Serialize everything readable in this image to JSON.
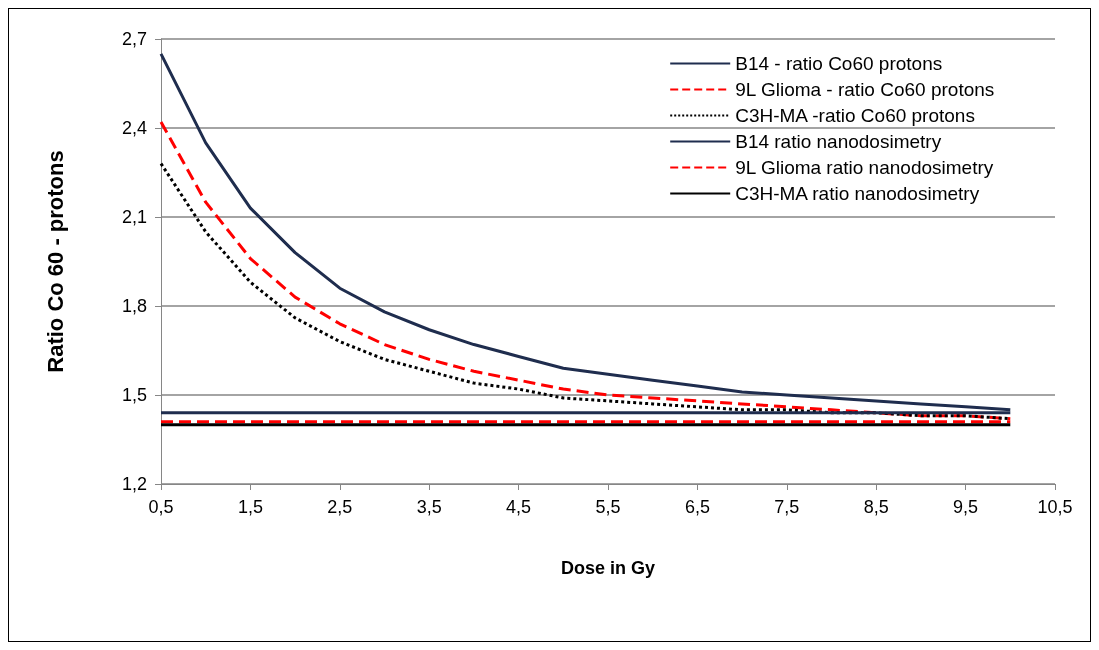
{
  "chart_data": {
    "type": "line",
    "xlabel": "Dose in Gy",
    "ylabel": "Ratio Co 60 - protons",
    "x": [
      0.5,
      1,
      1.5,
      2,
      2.5,
      3,
      3.5,
      4,
      4.5,
      5,
      5.5,
      6,
      6.5,
      7,
      7.5,
      8,
      8.5,
      9,
      9.5,
      10
    ],
    "series": [
      {
        "name": "B14 - ratio Co60 protons",
        "color": "#1f2d4e",
        "line_style": "solid",
        "values": [
          2.65,
          2.35,
          2.13,
          1.98,
          1.86,
          1.78,
          1.72,
          1.67,
          1.63,
          1.59,
          1.57,
          1.55,
          1.53,
          1.51,
          1.5,
          1.49,
          1.48,
          1.47,
          1.46,
          1.45
        ]
      },
      {
        "name": "9L Glioma - ratio Co60 protons",
        "color": "#ff0000",
        "line_style": "dashed",
        "values": [
          2.42,
          2.15,
          1.96,
          1.83,
          1.74,
          1.67,
          1.62,
          1.58,
          1.55,
          1.52,
          1.5,
          1.49,
          1.48,
          1.47,
          1.46,
          1.45,
          1.44,
          1.43,
          1.43,
          1.42
        ]
      },
      {
        "name": "C3H-MA -ratio Co60 protons",
        "color": "#000000",
        "line_style": "dotted",
        "values": [
          2.28,
          2.05,
          1.88,
          1.76,
          1.68,
          1.62,
          1.58,
          1.54,
          1.52,
          1.49,
          1.48,
          1.47,
          1.46,
          1.45,
          1.45,
          1.44,
          1.44,
          1.43,
          1.43,
          1.42
        ]
      },
      {
        "name": "B14 ratio nanodosimetry",
        "color": "#1f2d4e",
        "line_style": "solid",
        "values": [
          1.44,
          1.44,
          1.44,
          1.44,
          1.44,
          1.44,
          1.44,
          1.44,
          1.44,
          1.44,
          1.44,
          1.44,
          1.44,
          1.44,
          1.44,
          1.44,
          1.44,
          1.44,
          1.44,
          1.44
        ]
      },
      {
        "name": "9L Glioma ratio nanodosimetry",
        "color": "#ff0000",
        "line_style": "dashed",
        "values": [
          1.41,
          1.41,
          1.41,
          1.41,
          1.41,
          1.41,
          1.41,
          1.41,
          1.41,
          1.41,
          1.41,
          1.41,
          1.41,
          1.41,
          1.41,
          1.41,
          1.41,
          1.41,
          1.41,
          1.41
        ]
      },
      {
        "name": "C3H-MA ratio nanodosimetry",
        "color": "#000000",
        "line_style": "solid",
        "values": [
          1.4,
          1.4,
          1.4,
          1.4,
          1.4,
          1.4,
          1.4,
          1.4,
          1.4,
          1.4,
          1.4,
          1.4,
          1.4,
          1.4,
          1.4,
          1.4,
          1.4,
          1.4,
          1.4,
          1.4
        ]
      }
    ],
    "xlim": [
      0.5,
      10.5
    ],
    "xticks": [
      {
        "value": 0.5,
        "label": "0,5"
      },
      {
        "value": 1.5,
        "label": "1,5"
      },
      {
        "value": 2.5,
        "label": "2,5"
      },
      {
        "value": 3.5,
        "label": "3,5"
      },
      {
        "value": 4.5,
        "label": "4,5"
      },
      {
        "value": 5.5,
        "label": "5,5"
      },
      {
        "value": 6.5,
        "label": "6,5"
      },
      {
        "value": 7.5,
        "label": "7,5"
      },
      {
        "value": 8.5,
        "label": "8,5"
      },
      {
        "value": 9.5,
        "label": "9,5"
      },
      {
        "value": 10.5,
        "label": "10,5"
      }
    ],
    "ylim": [
      1.2,
      2.7
    ],
    "yticks": [
      {
        "value": 1.2,
        "label": "1,2"
      },
      {
        "value": 1.5,
        "label": "1,5"
      },
      {
        "value": 1.8,
        "label": "1,8"
      },
      {
        "value": 2.1,
        "label": "2,1"
      },
      {
        "value": 2.4,
        "label": "2,4"
      },
      {
        "value": 2.7,
        "label": "2,7"
      }
    ],
    "grid": "y",
    "legend": "top right",
    "marker": "none"
  }
}
